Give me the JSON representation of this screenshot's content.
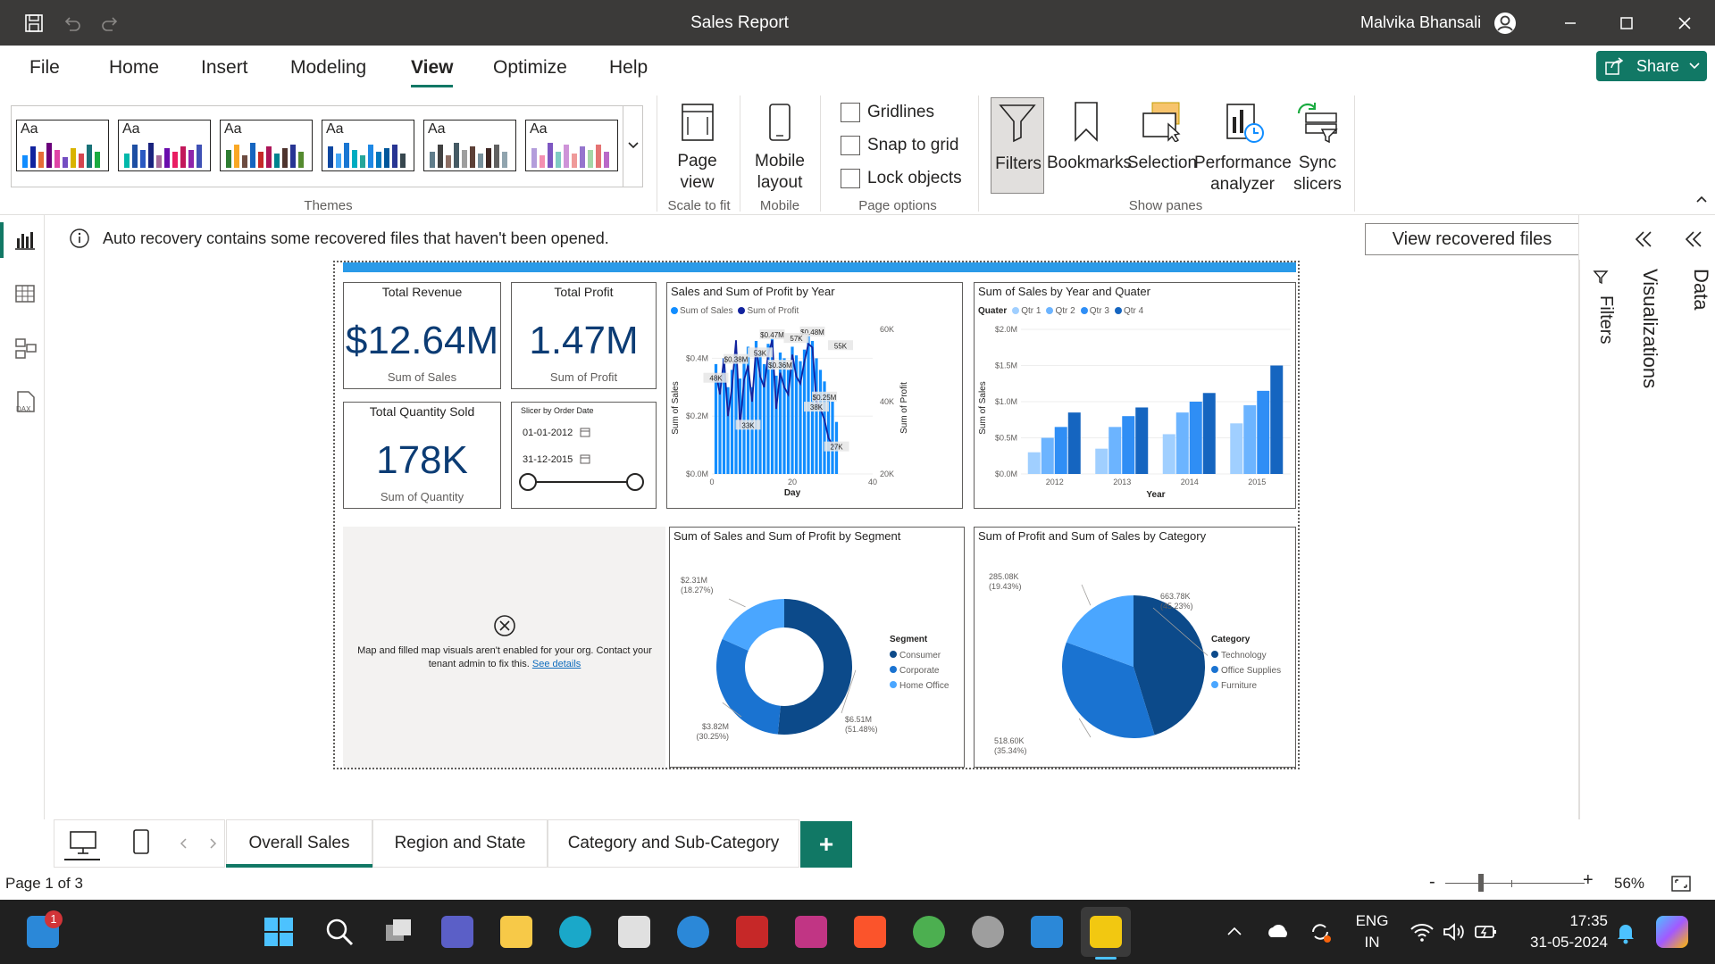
{
  "window": {
    "title": "Sales Report",
    "user": "Malvika Bhansali"
  },
  "menu": {
    "tabs": [
      "File",
      "Home",
      "Insert",
      "Modeling",
      "View",
      "Optimize",
      "Help"
    ],
    "active": "View",
    "share_label": "Share"
  },
  "ribbon": {
    "themes_label": "Themes",
    "theme_aa": "Aa",
    "page_view": "Page view",
    "scale_to_fit": "Scale to fit",
    "mobile_layout_1": "Mobile",
    "mobile_layout_2": "layout",
    "mobile_label": "Mobile",
    "gridlines": "Gridlines",
    "snap_to_grid": "Snap to grid",
    "lock_objects": "Lock objects",
    "page_options": "Page options",
    "filters": "Filters",
    "bookmarks": "Bookmarks",
    "selection": "Selection",
    "performance_1": "Performance",
    "performance_2": "analyzer",
    "sync_1": "Sync",
    "sync_2": "slicers",
    "show_panes": "Show panes"
  },
  "notification": {
    "text": "Auto recovery contains some recovered files that haven't been opened.",
    "button": "View recovered files"
  },
  "panes": {
    "filters": "Filters",
    "visualizations": "Visualizations",
    "data": "Data"
  },
  "report": {
    "revenue": {
      "title": "Total Revenue",
      "value": "$12.64M",
      "sub": "Sum of Sales"
    },
    "profit": {
      "title": "Total Profit",
      "value": "1.47M",
      "sub": "Sum of Profit"
    },
    "quantity": {
      "title": "Total Quantity Sold",
      "value": "178K",
      "sub": "Sum of Quantity"
    },
    "slicer": {
      "title": "Slicer by Order Date",
      "start": "01-01-2012",
      "end": "31-12-2015",
      "start_pos": 0,
      "end_pos": 1
    },
    "map": {
      "message": "Map and filled map visuals aren't enabled for your org. Contact your tenant admin to fix this.",
      "link": "See details"
    }
  },
  "chart_data": [
    {
      "type": "bar+line",
      "title": "Sales and Sum of Profit by Year",
      "legend": [
        "Sum of Sales",
        "Sum of Profit"
      ],
      "xlabel": "Day",
      "ylabel": "Sum of Sales",
      "y2label": "Sum of Profit",
      "xticks": [
        "0",
        "20",
        "40"
      ],
      "yticks": [
        "$0.0M",
        "$0.2M",
        "$0.4M"
      ],
      "y2ticks": [
        "20K",
        "40K",
        "60K"
      ],
      "x": [
        1,
        2,
        3,
        4,
        5,
        6,
        7,
        8,
        9,
        10,
        11,
        12,
        13,
        14,
        15,
        16,
        17,
        18,
        19,
        20,
        21,
        22,
        23,
        24,
        25,
        26,
        27,
        28,
        29,
        30,
        31
      ],
      "sales": [
        0.38,
        0.32,
        0.4,
        0.3,
        0.36,
        0.42,
        0.33,
        0.4,
        0.44,
        0.3,
        0.46,
        0.42,
        0.38,
        0.45,
        0.47,
        0.34,
        0.42,
        0.4,
        0.36,
        0.44,
        0.41,
        0.39,
        0.43,
        0.48,
        0.46,
        0.4,
        0.36,
        0.32,
        0.28,
        0.25,
        0.18
      ],
      "profit": [
        48,
        42,
        52,
        36,
        44,
        57,
        33,
        46,
        50,
        40,
        55,
        47,
        44,
        53,
        57,
        38,
        48,
        44,
        42,
        53,
        47,
        45,
        51,
        56,
        55,
        40,
        38,
        35,
        30,
        28,
        27
      ],
      "labels": [
        "$0.38M",
        "$0.47M",
        "$0.48M",
        "$0.36M",
        "$0.25M",
        "48K",
        "33K",
        "53K",
        "57K",
        "55K",
        "38K",
        "27K"
      ],
      "colors": {
        "sales": "#118dff",
        "profit": "#12239e"
      }
    },
    {
      "type": "bar",
      "title": "Sum of Sales by Year and Quater",
      "legend_title": "Quater",
      "legend": [
        "Qtr 1",
        "Qtr 2",
        "Qtr 3",
        "Qtr 4"
      ],
      "xlabel": "Year",
      "ylabel": "Sum of Sales",
      "categories": [
        "2012",
        "2013",
        "2014",
        "2015"
      ],
      "yticks": [
        "$0.0M",
        "$0.5M",
        "$1.0M",
        "$1.5M",
        "$2.0M"
      ],
      "ylim": [
        0,
        2.0
      ],
      "series": [
        {
          "name": "Qtr 1",
          "values": [
            0.3,
            0.35,
            0.55,
            0.7
          ]
        },
        {
          "name": "Qtr 2",
          "values": [
            0.5,
            0.65,
            0.85,
            0.95
          ]
        },
        {
          "name": "Qtr 3",
          "values": [
            0.65,
            0.8,
            1.0,
            1.15
          ]
        },
        {
          "name": "Qtr 4",
          "values": [
            0.85,
            0.92,
            1.12,
            1.5
          ]
        }
      ],
      "colors": [
        "#a0cfff",
        "#6cb4ff",
        "#2f8ef5",
        "#1565c0"
      ]
    },
    {
      "type": "donut",
      "title": "Sum of Sales and Sum of Profit by Segment",
      "legend_title": "Segment",
      "slices": [
        {
          "name": "Consumer",
          "value": 6.51,
          "label": "$6.51M (51.48%)",
          "color": "#0c4a8a"
        },
        {
          "name": "Corporate",
          "value": 3.82,
          "label": "$3.82M (30.25%)",
          "color": "#1a73d1"
        },
        {
          "name": "Home Office",
          "value": 2.31,
          "label": "$2.31M (18.27%)",
          "color": "#4aa6ff"
        }
      ]
    },
    {
      "type": "pie",
      "title": "Sum of Profit and Sum of Sales by Category",
      "legend_title": "Category",
      "slices": [
        {
          "name": "Technology",
          "value": 663.78,
          "label": "663.78K (45.23%)",
          "color": "#0c4a8a"
        },
        {
          "name": "Office Supplies",
          "value": 518.6,
          "label": "518.60K (35.34%)",
          "color": "#1a73d1"
        },
        {
          "name": "Furniture",
          "value": 285.08,
          "label": "285.08K (19.43%)",
          "color": "#4aa6ff"
        }
      ]
    }
  ],
  "pages": {
    "tabs": [
      "Overall Sales",
      "Region and State",
      "Category and Sub-Category"
    ],
    "active": "Overall Sales",
    "add": "+"
  },
  "status": {
    "page": "Page 1 of 3",
    "zoom": "56%"
  },
  "taskbar": {
    "lang_1": "ENG",
    "lang_2": "IN",
    "time": "17:35",
    "date": "31-05-2024",
    "badge": "1"
  }
}
